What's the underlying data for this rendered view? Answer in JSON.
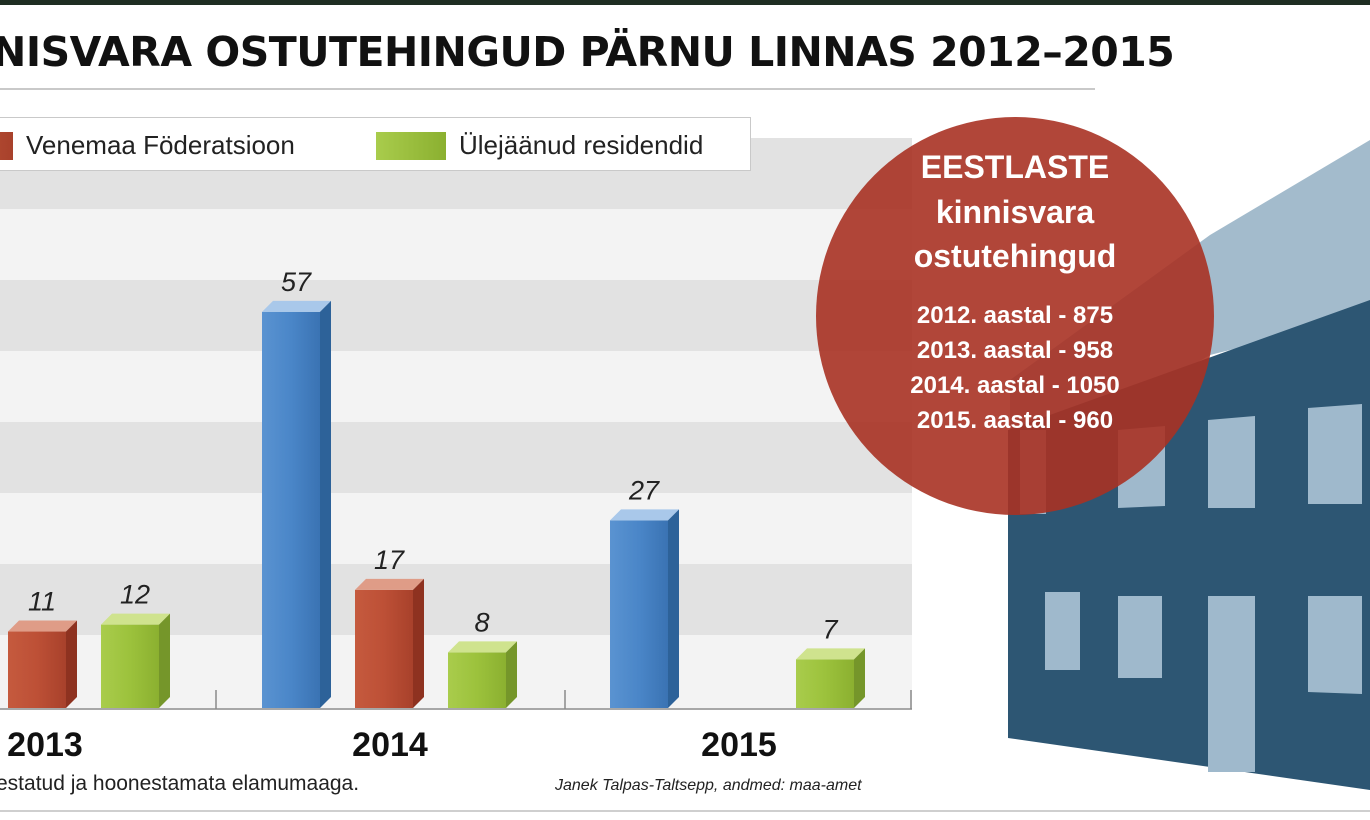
{
  "page": {
    "title": "NISVARA OSTUTEHINGUD PÄRNU LINNAS 2012–2015",
    "footnote": "estatud ja hoonestamata elamumaaga.",
    "credit": "Janek Talpas-Taltsepp, andmed: maa-amet"
  },
  "legend": [
    {
      "label": "Venemaa Föderatsioon",
      "color": "#b84a33"
    },
    {
      "label": "Ülejäänud residendid",
      "color": "#9cc23c"
    }
  ],
  "info_circle": {
    "heading_lines": [
      "EESTLASTE",
      "kinnisvara",
      "ostutehingud"
    ],
    "lines": [
      "2012. aastal - 875",
      "2013. aastal - 958",
      "2014. aastal - 1050",
      "2015. aastal  - 960"
    ]
  },
  "colors": {
    "blue_series": "#3f7cc0",
    "red_series": "#b84a33",
    "green_series": "#9cc23c",
    "circle": "#a83224",
    "building": "#2d5673"
  },
  "chart_data": {
    "type": "bar",
    "categories": [
      "2013",
      "2014",
      "2015"
    ],
    "series": [
      {
        "values": [
          null,
          57,
          27
        ]
      },
      {
        "name": "Venemaa Föderatsioon",
        "values": [
          11,
          17,
          null
        ]
      },
      {
        "name": "Ülejäänud residendid",
        "values": [
          12,
          8,
          7
        ]
      }
    ],
    "data_labels": true,
    "title": "NISVARA OSTUTEHINGUD PÄRNU LINNAS 2012–2015",
    "xlabel": "",
    "ylabel": "",
    "legend_position": "top-left"
  }
}
